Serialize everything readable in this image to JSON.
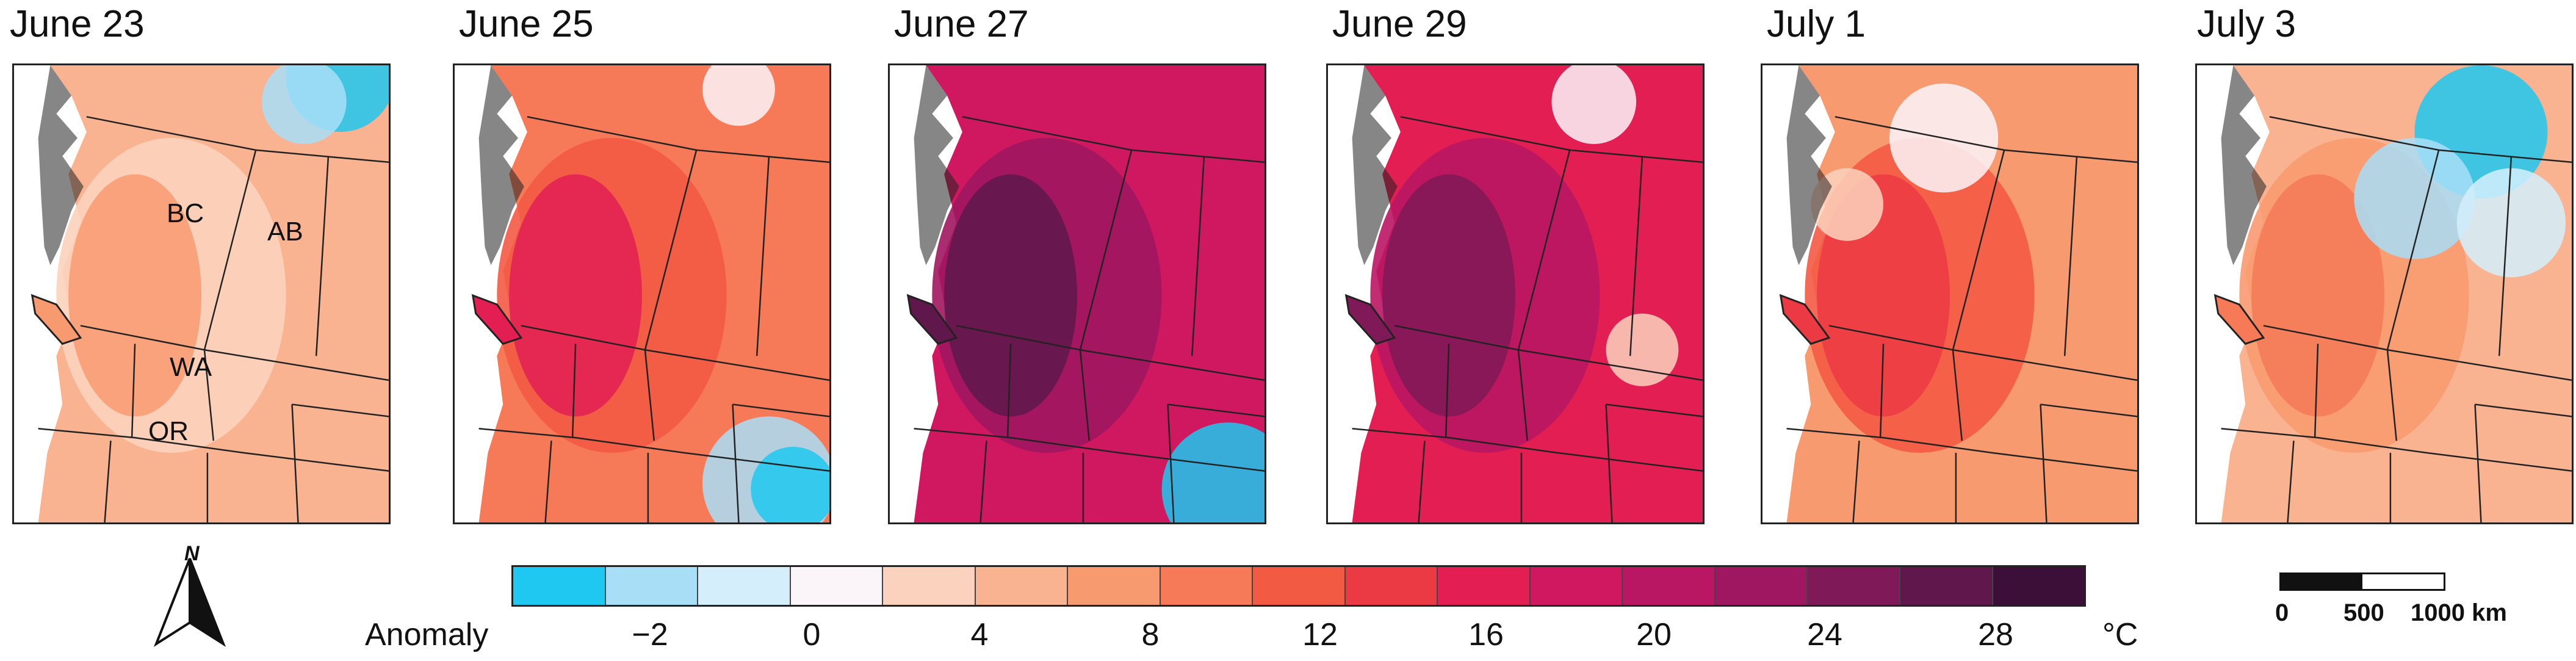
{
  "panels": [
    {
      "date": "June 23",
      "level": 0,
      "labels": [
        "BC",
        "AB",
        "WA",
        "OR"
      ]
    },
    {
      "date": "June 25",
      "level": 1,
      "labels": []
    },
    {
      "date": "June 27",
      "level": 3,
      "labels": []
    },
    {
      "date": "June 29",
      "level": 2,
      "labels": []
    },
    {
      "date": "July 1",
      "level": 1,
      "labels": []
    },
    {
      "date": "July 3",
      "level": 0,
      "labels": []
    }
  ],
  "legend": {
    "title": "Anomaly",
    "unit": "°C",
    "ticks": [
      "−2",
      "0",
      "4",
      "8",
      "12",
      "16",
      "20",
      "24",
      "28"
    ],
    "colors": [
      "#1ec8f0",
      "#a9def7",
      "#d4eefb",
      "#fbf4f9",
      "#fbd2bd",
      "#f9b391",
      "#f89a70",
      "#f67a57",
      "#f35a44",
      "#ec3a44",
      "#e21e53",
      "#d01861",
      "#b91663",
      "#9e1760",
      "#7f1957",
      "#5f174c",
      "#3b0f38"
    ]
  },
  "scale": {
    "labels": [
      "0",
      "500",
      "1000 km"
    ]
  },
  "north": {
    "label": "N"
  }
}
